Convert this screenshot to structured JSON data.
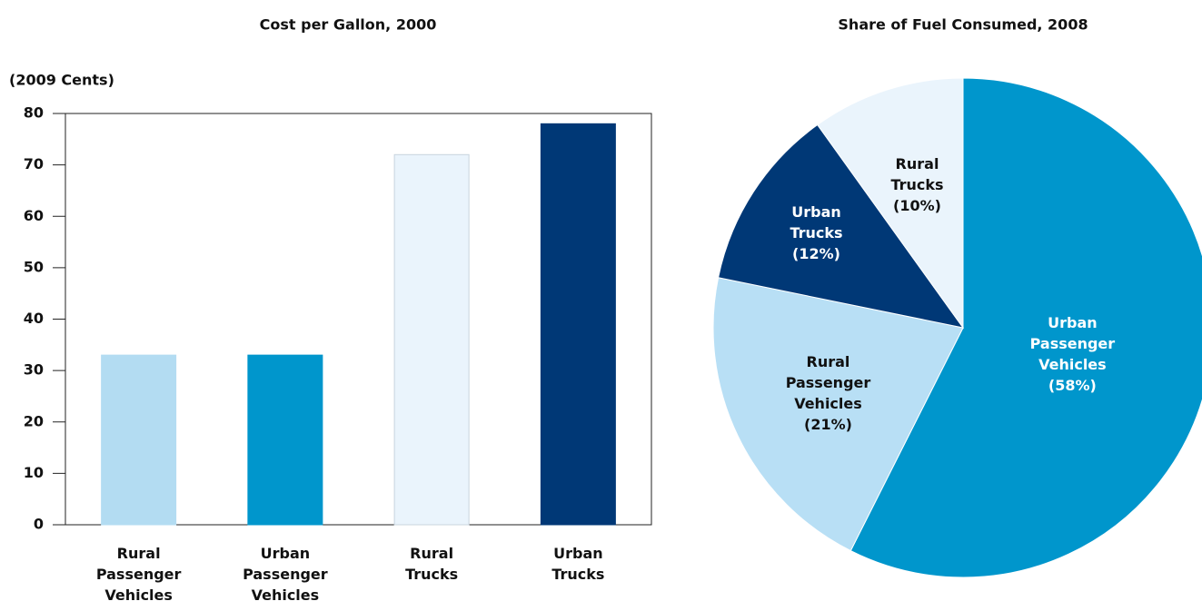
{
  "chart_data": [
    {
      "type": "bar",
      "title": "Cost per Gallon, 2000",
      "y_label": "(2009 Cents)",
      "categories": [
        "Rural Passenger Vehicles",
        "Urban Passenger Vehicles",
        "Rural Trucks",
        "Urban Trucks"
      ],
      "values": [
        33,
        33,
        72,
        78
      ],
      "colors": [
        "#b3dcf2",
        "#0096cc",
        "#eaf4fc",
        "#003876"
      ],
      "ylim": [
        0,
        80
      ],
      "yticks": [
        0,
        10,
        20,
        30,
        40,
        50,
        60,
        70,
        80
      ]
    },
    {
      "type": "pie",
      "title": "Share of Fuel Consumed, 2008",
      "categories": [
        "Urban Passenger Vehicles",
        "Rural Passenger Vehicles",
        "Urban Trucks",
        "Rural Trucks"
      ],
      "values": [
        58,
        21,
        12,
        10
      ],
      "value_labels": [
        "(58%)",
        "(21%)",
        "(12%)",
        "(10%)"
      ],
      "colors": [
        "#0096cc",
        "#b8dff5",
        "#003876",
        "#eaf4fc"
      ]
    }
  ]
}
